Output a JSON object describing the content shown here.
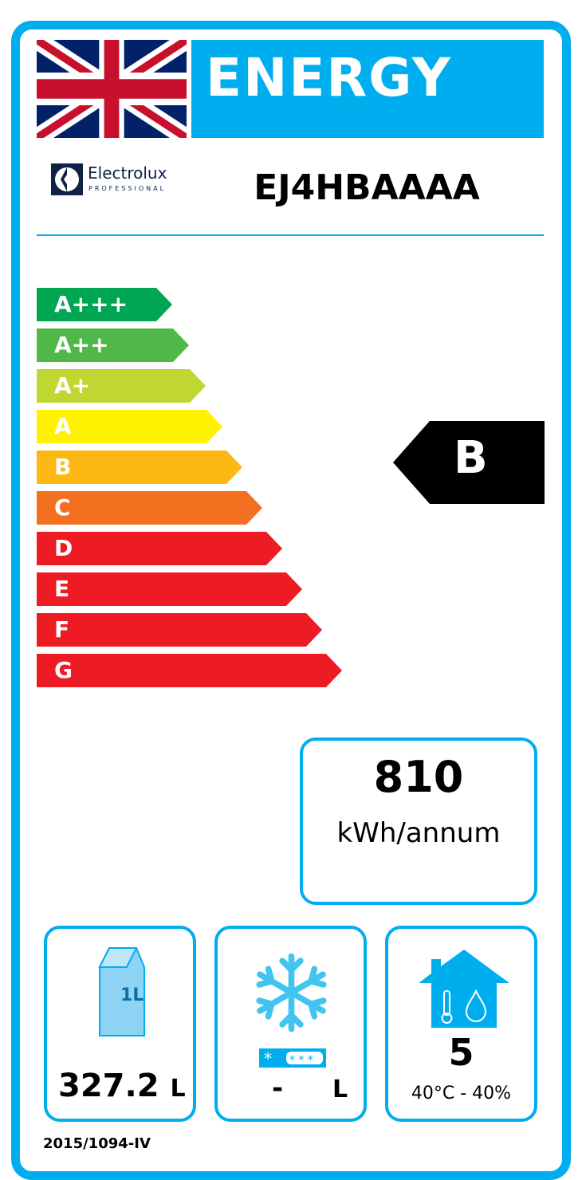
{
  "header": {
    "title": "ENERGY",
    "model": "EJ4HBAAAA",
    "brand": "Electrolux",
    "brand_sub": "PROFESSIONAL"
  },
  "scale": [
    {
      "label": "A+++",
      "color": "#00a651"
    },
    {
      "label": "A++",
      "color": "#50b848"
    },
    {
      "label": "A+",
      "color": "#bfd730"
    },
    {
      "label": "A",
      "color": "#fff200"
    },
    {
      "label": "B",
      "color": "#fdb913"
    },
    {
      "label": "C",
      "color": "#f37021"
    },
    {
      "label": "D",
      "color": "#ed1c24"
    },
    {
      "label": "E",
      "color": "#ed1c24"
    },
    {
      "label": "F",
      "color": "#ed1c24"
    },
    {
      "label": "G",
      "color": "#ed1c24"
    }
  ],
  "rating": "B",
  "consumption": {
    "value": "810",
    "unit": "kWh/annum"
  },
  "chilled_volume": {
    "value": "327.2",
    "unit": "L"
  },
  "frozen_volume": {
    "value": "-",
    "unit": "L"
  },
  "climate": {
    "class": "5",
    "conditions": "40°C - 40%"
  },
  "regulation": "2015/1094-IV",
  "colors": {
    "accent": "#00aeef",
    "indicator": "#000000"
  }
}
